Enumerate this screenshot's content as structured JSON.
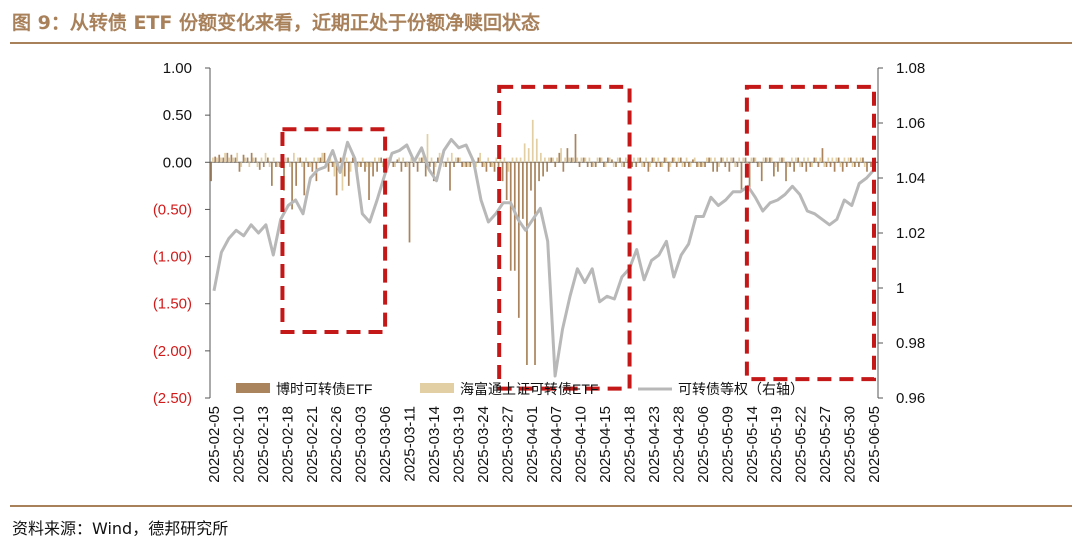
{
  "title": "图 9：从转债 ETF 份额变化来看，近期正处于份额净赎回状态",
  "source": "资料来源：Wind，德邦研究所",
  "colors": {
    "bar1": "#a9845c",
    "bar2": "#e3cfa4",
    "line": "#b8b8b8",
    "box": "#c41818",
    "negative_tick": "#d11a1a",
    "title": "#a8805a"
  },
  "chart_data": {
    "type": "bar+line",
    "ylim_left": [
      -2.5,
      1.0
    ],
    "ylim_right": [
      0.96,
      1.08
    ],
    "yticks_left": [
      {
        "value": 1.0,
        "label": "1.00"
      },
      {
        "value": 0.5,
        "label": "0.50"
      },
      {
        "value": 0.0,
        "label": "0.00"
      },
      {
        "value": -0.5,
        "label": "(0.50)"
      },
      {
        "value": -1.0,
        "label": "(1.00)"
      },
      {
        "value": -1.5,
        "label": "(1.50)"
      },
      {
        "value": -2.0,
        "label": "(2.00)"
      },
      {
        "value": -2.5,
        "label": "(2.50)"
      }
    ],
    "yticks_right": [
      {
        "value": 1.08,
        "label": "1.08"
      },
      {
        "value": 1.06,
        "label": "1.06"
      },
      {
        "value": 1.04,
        "label": "1.04"
      },
      {
        "value": 1.02,
        "label": "1.02"
      },
      {
        "value": 1.0,
        "label": "1"
      },
      {
        "value": 0.98,
        "label": "0.98"
      },
      {
        "value": 0.96,
        "label": "0.96"
      }
    ],
    "x_labels": [
      "2025-02-05",
      "2025-02-10",
      "2025-02-13",
      "2025-02-18",
      "2025-02-21",
      "2025-02-26",
      "2025-03-03",
      "2025-03-06",
      "2025-03-11",
      "2025-03-14",
      "2025-03-19",
      "2025-03-24",
      "2025-03-27",
      "2025-04-01",
      "2025-04-07",
      "2025-04-10",
      "2025-04-15",
      "2025-04-18",
      "2025-04-23",
      "2025-04-28",
      "2025-05-06",
      "2025-05-09",
      "2025-05-14",
      "2025-05-19",
      "2025-05-22",
      "2025-05-27",
      "2025-05-30",
      "2025-06-05"
    ],
    "legend_position": "bottom-center",
    "series": [
      {
        "name": "博时可转债ETF",
        "kind": "bar",
        "values": [
          -0.2,
          0.06,
          0.08,
          0.05,
          0.1,
          0.08,
          0.05,
          -0.1,
          0.08,
          0.05,
          0.1,
          0.05,
          -0.08,
          -0.05,
          0.05,
          -0.25,
          -0.05,
          -0.05,
          -0.3,
          0.05,
          -0.5,
          -0.25,
          0.05,
          -0.35,
          -0.05,
          -0.1,
          -0.2,
          0.05,
          0.1,
          -0.1,
          -0.05,
          -0.35,
          0.05,
          -0.15,
          -0.25,
          0.05,
          -0.15,
          -0.05,
          -0.1,
          -0.4,
          -0.15,
          -0.1,
          0.05,
          -0.05,
          0.05,
          -0.05,
          0.03,
          -0.1,
          -0.05,
          -0.85,
          -0.05,
          -0.1,
          0.05,
          -0.15,
          -0.05,
          -0.2,
          0.05,
          0.05,
          -0.05,
          -0.3,
          -0.05,
          0.05,
          -0.05,
          -0.05,
          -0.05,
          -0.05,
          0.05,
          -0.05,
          -0.1,
          -0.05,
          -0.1,
          -0.15,
          -0.2,
          -0.4,
          -1.15,
          -1.15,
          -1.65,
          -0.6,
          -2.15,
          -0.3,
          -2.15,
          -0.2,
          -0.15,
          -0.1,
          0.05,
          -0.05,
          0.1,
          -0.1,
          0.15,
          0.05,
          0.3,
          -0.05,
          0.05,
          -0.05,
          -0.05,
          -0.05,
          0.05,
          -0.05,
          0.05,
          0.03,
          -0.05,
          0.05,
          -0.05,
          0.03,
          -0.05,
          -0.05,
          0.05,
          -0.05,
          -0.1,
          0.05,
          -0.05,
          -0.05,
          0.05,
          -0.1,
          0.05,
          -0.05,
          0.05,
          -0.05,
          -0.05,
          0.03,
          -0.05,
          -0.05,
          -0.05,
          0.05,
          -0.1,
          -0.1,
          0.05,
          -0.05,
          -0.1,
          0.05,
          -0.05,
          -0.3,
          0.05,
          -0.3,
          0.05,
          -0.05,
          -0.2,
          0.05,
          0.05,
          -0.15,
          -0.1,
          0.05,
          -0.2,
          -0.05,
          -0.1,
          0.05,
          -0.05,
          -0.1,
          -0.05,
          0.05,
          -0.05,
          0.15,
          -0.05,
          -0.05,
          -0.1,
          0.05,
          -0.1,
          -0.05,
          0.05,
          -0.05,
          -0.05,
          0.05,
          -0.1,
          -0.05,
          0.05
        ],
        "color": "#a9845c"
      },
      {
        "name": "海富通上证可转债ETF",
        "kind": "bar",
        "values": [
          0.05,
          0.05,
          0.05,
          0.1,
          0.05,
          0.05,
          0.1,
          -0.05,
          0.05,
          -0.05,
          0.05,
          -0.05,
          0.05,
          0.1,
          -0.05,
          0.05,
          -0.05,
          0.05,
          0.05,
          -0.05,
          0.1,
          0.05,
          -0.05,
          0.05,
          -0.05,
          0.05,
          0.05,
          0.1,
          -0.05,
          0.05,
          -0.15,
          -0.05,
          -0.3,
          0.05,
          -0.1,
          0.05,
          -0.05,
          0.05,
          -0.05,
          -0.05,
          0.05,
          0.05,
          -0.05,
          0.05,
          0.05,
          -0.05,
          0.05,
          0.05,
          -0.05,
          0.05,
          0.05,
          0.05,
          0.1,
          0.3,
          0.05,
          -0.05,
          0.1,
          -0.05,
          0.05,
          0.1,
          0.05,
          0.05,
          -0.05,
          -0.05,
          0.05,
          -0.05,
          0.1,
          -0.05,
          0.05,
          -0.05,
          0.05,
          0.05,
          0.05,
          -0.1,
          0.05,
          0.05,
          0.05,
          0.2,
          0.15,
          0.45,
          0.25,
          0.1,
          0.05,
          0.05,
          0.05,
          0.05,
          0.15,
          0.05,
          0.05,
          0.05,
          0.05,
          0.05,
          0.05,
          0.05,
          -0.05,
          0.05,
          0.05,
          -0.05,
          0.05,
          -0.05,
          0.05,
          -0.05,
          0.05,
          -0.05,
          0.05,
          0.05,
          -0.05,
          0.05,
          -0.05,
          0.05,
          0.05,
          -0.05,
          0.05,
          -0.05,
          0.05,
          0.05,
          -0.05,
          0.05,
          -0.05,
          0.05,
          -0.05,
          -0.05,
          0.05,
          0.05,
          0.05,
          -0.05,
          0.05,
          0.05,
          0.05,
          -0.05,
          0.05,
          0.05,
          -0.05,
          0.05,
          0.05,
          -0.05,
          0.05,
          0.05,
          0.05,
          -0.05,
          0.05,
          0.05,
          -0.05,
          0.05,
          0.05,
          -0.05,
          0.05,
          0.05,
          -0.05,
          0.05,
          0.05,
          -0.05,
          0.05,
          0.05,
          0.05,
          -0.05,
          0.05,
          0.05,
          -0.05,
          0.05,
          0.05,
          -0.05
        ],
        "color": "#e3cfa4"
      },
      {
        "name": "可转债等权（右轴）",
        "kind": "line",
        "axis": "right",
        "values": [
          0.999,
          1.013,
          1.018,
          1.021,
          1.019,
          1.023,
          1.02,
          1.023,
          1.012,
          1.025,
          1.03,
          1.032,
          1.027,
          1.04,
          1.043,
          1.044,
          1.05,
          1.042,
          1.053,
          1.047,
          1.027,
          1.024,
          1.032,
          1.041,
          1.049,
          1.05,
          1.052,
          1.046,
          1.051,
          1.043,
          1.039,
          1.05,
          1.054,
          1.051,
          1.052,
          1.046,
          1.032,
          1.024,
          1.027,
          1.031,
          1.031,
          1.025,
          1.021,
          1.025,
          1.029,
          1.017,
          0.968,
          0.985,
          0.997,
          1.007,
          1.002,
          1.007,
          0.995,
          0.997,
          0.996,
          1.004,
          1.007,
          1.014,
          1.003,
          1.01,
          1.012,
          1.017,
          1.004,
          1.012,
          1.016,
          1.026,
          1.026,
          1.033,
          1.03,
          1.032,
          1.035,
          1.035,
          1.037,
          1.033,
          1.028,
          1.031,
          1.032,
          1.034,
          1.037,
          1.034,
          1.028,
          1.027,
          1.025,
          1.023,
          1.025,
          1.032,
          1.03,
          1.038,
          1.04,
          1.043
        ],
        "color": "#b8b8b8"
      }
    ],
    "annotations": [
      {
        "type": "dashed-box",
        "from": "2025-02-17",
        "to": "2025-03-06",
        "ymin": -1.8,
        "ymax": 0.35
      },
      {
        "type": "dashed-box",
        "from": "2025-03-26",
        "to": "2025-04-18",
        "ymin": -2.4,
        "ymax": 0.8
      },
      {
        "type": "dashed-box",
        "from": "2025-05-13",
        "to": "2025-06-05",
        "ymin": -2.3,
        "ymax": 0.8
      }
    ]
  }
}
